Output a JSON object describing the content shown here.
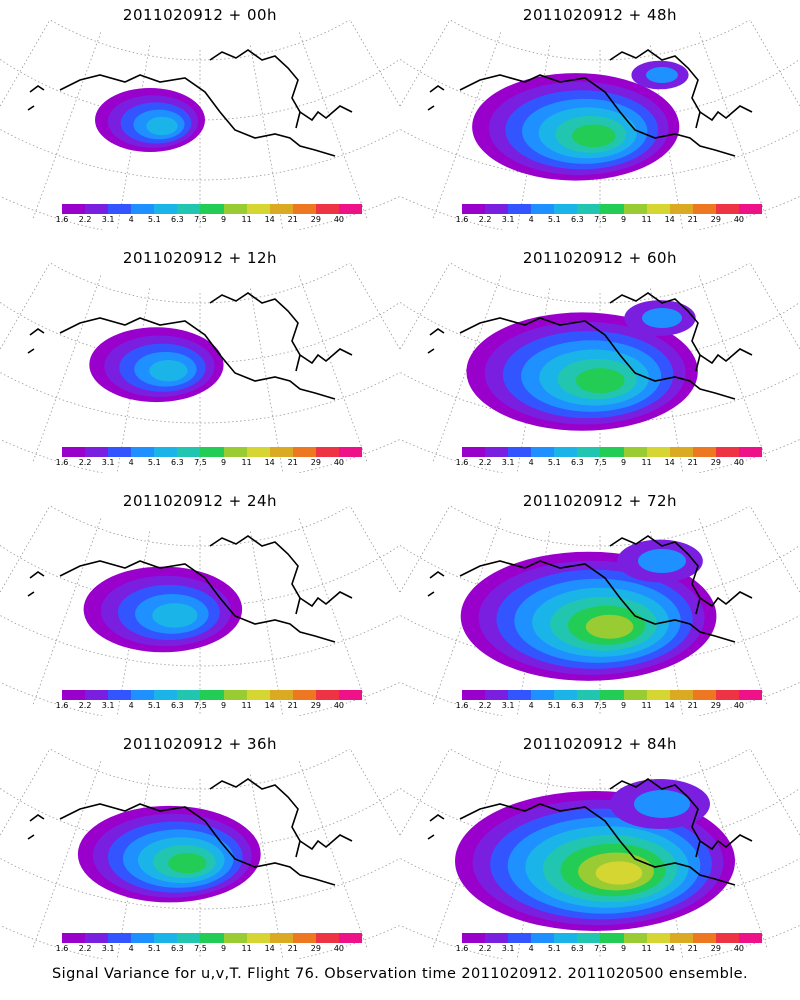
{
  "footer": "Signal Variance for u,v,T. Flight 76. Observation time 2011020912. 2011020500 ensemble.",
  "colorbar": {
    "labels": [
      "1.6",
      "2.2",
      "3.1",
      "4",
      "5.1",
      "6.3",
      "7.5",
      "9",
      "11",
      "14",
      "21",
      "29",
      "40"
    ],
    "colors": [
      "#9900cc",
      "#7a1fe0",
      "#3355ff",
      "#1e90ff",
      "#1bb4e8",
      "#22c6b0",
      "#22cc55",
      "#99cc33",
      "#d6d633",
      "#d9aa22",
      "#ee7722",
      "#ee3344",
      "#ee1188"
    ]
  },
  "chart_data": [
    {
      "type": "heatmap",
      "title": "2011020912 + 00h",
      "lead_hours": 0,
      "max_level": "5.1",
      "colorbar": "1.6–40"
    },
    {
      "type": "heatmap",
      "title": "2011020912 + 48h",
      "lead_hours": 48,
      "max_level": "7.5",
      "colorbar": "1.6–40"
    },
    {
      "type": "heatmap",
      "title": "2011020912 + 12h",
      "lead_hours": 12,
      "max_level": "5.1",
      "colorbar": "1.6–40"
    },
    {
      "type": "heatmap",
      "title": "2011020912 + 60h",
      "lead_hours": 60,
      "max_level": "7.5",
      "colorbar": "1.6–40"
    },
    {
      "type": "heatmap",
      "title": "2011020912 + 24h",
      "lead_hours": 24,
      "max_level": "5.1",
      "colorbar": "1.6–40"
    },
    {
      "type": "heatmap",
      "title": "2011020912 + 72h",
      "lead_hours": 72,
      "max_level": "9",
      "colorbar": "1.6–40"
    },
    {
      "type": "heatmap",
      "title": "2011020912 + 36h",
      "lead_hours": 36,
      "max_level": "7.5",
      "colorbar": "1.6–40"
    },
    {
      "type": "heatmap",
      "title": "2011020912 + 84h",
      "lead_hours": 84,
      "max_level": "11",
      "colorbar": "1.6–40"
    }
  ]
}
